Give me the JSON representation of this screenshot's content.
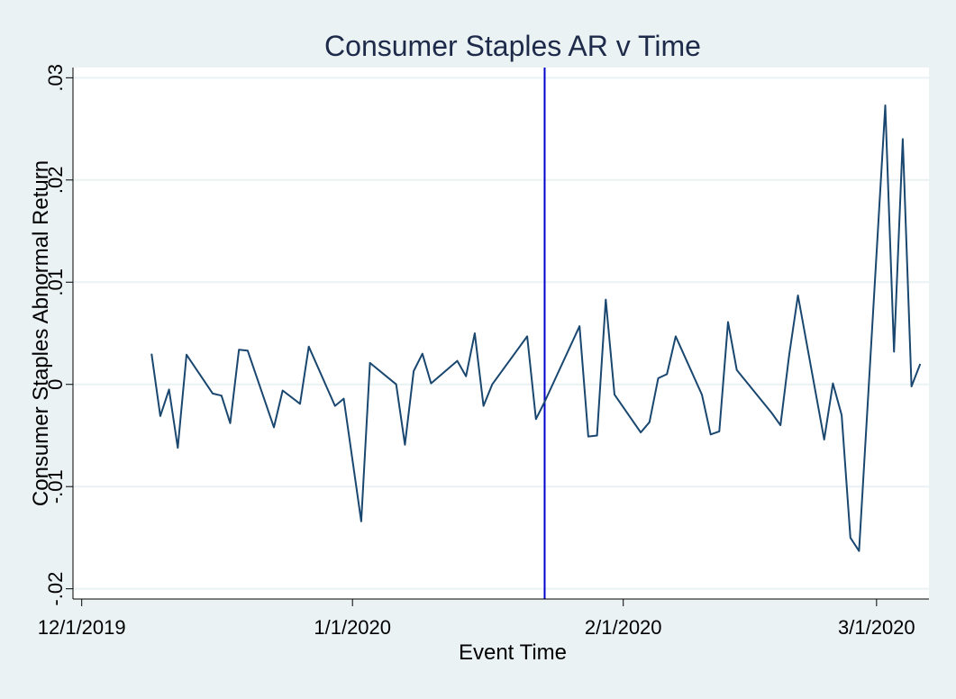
{
  "chart_data": {
    "type": "line",
    "title": "Consumer Staples AR v Time",
    "xlabel": "Event Time",
    "ylabel": "Consumer Staples Abnormal Return",
    "x_ticks": [
      "12/1/2019",
      "1/1/2020",
      "2/1/2020",
      "3/1/2020"
    ],
    "y_ticks": [
      {
        "value": -0.02,
        "label": "-.02"
      },
      {
        "value": -0.01,
        "label": "-.01"
      },
      {
        "value": 0,
        "label": "0"
      },
      {
        "value": 0.01,
        "label": ".01"
      },
      {
        "value": 0.02,
        "label": ".02"
      },
      {
        "value": 0.03,
        "label": ".03"
      }
    ],
    "xlim": [
      "2019-11-30",
      "2020-03-07"
    ],
    "ylim": [
      -0.021,
      0.031
    ],
    "grid": true,
    "reference_line": {
      "x": "2020-01-23",
      "color": "#0000cd"
    },
    "colors": {
      "background": "#eaf2f3",
      "plot_background": "#ffffff",
      "line": "#1a476f",
      "grid": "#eaf2f3",
      "reference_line": "#0000cd"
    },
    "series": [
      {
        "x": [
          "2019-12-09",
          "2019-12-10",
          "2019-12-11",
          "2019-12-12",
          "2019-12-13",
          "2019-12-16",
          "2019-12-17",
          "2019-12-18",
          "2019-12-19",
          "2019-12-20",
          "2019-12-23",
          "2019-12-24",
          "2019-12-26",
          "2019-12-27",
          "2019-12-30",
          "2019-12-31",
          "2020-01-02",
          "2020-01-03",
          "2020-01-06",
          "2020-01-07",
          "2020-01-08",
          "2020-01-09",
          "2020-01-10",
          "2020-01-13",
          "2020-01-14",
          "2020-01-15",
          "2020-01-16",
          "2020-01-17",
          "2020-01-21",
          "2020-01-22",
          "2020-01-23",
          "2020-01-27",
          "2020-01-28",
          "2020-01-29",
          "2020-01-30",
          "2020-01-31",
          "2020-02-03",
          "2020-02-04",
          "2020-02-05",
          "2020-02-06",
          "2020-02-07",
          "2020-02-10",
          "2020-02-11",
          "2020-02-12",
          "2020-02-13",
          "2020-02-14",
          "2020-02-18",
          "2020-02-19",
          "2020-02-20",
          "2020-02-21",
          "2020-02-24",
          "2020-02-25",
          "2020-02-26",
          "2020-02-27",
          "2020-02-28",
          "2020-03-02",
          "2020-03-03",
          "2020-03-04",
          "2020-03-05",
          "2020-03-06"
        ],
        "values": [
          0.003,
          -0.0031,
          -0.0005,
          -0.0062,
          0.0029,
          -0.0009,
          -0.0011,
          -0.0038,
          0.0034,
          0.0033,
          -0.0042,
          -0.0006,
          -0.0019,
          0.0037,
          -0.0021,
          -0.0014,
          -0.0134,
          0.0021,
          0.0,
          -0.0059,
          0.0013,
          0.003,
          0.0001,
          0.0023,
          0.0008,
          0.005,
          -0.0021,
          0.0,
          0.0047,
          -0.0034,
          -0.0017,
          0.0057,
          -0.0051,
          -0.005,
          0.0083,
          -0.001,
          -0.0047,
          -0.0037,
          0.0006,
          0.001,
          0.0047,
          -0.001,
          -0.0049,
          -0.0046,
          0.0061,
          0.0014,
          -0.0028,
          -0.004,
          0.0029,
          0.0087,
          -0.0054,
          0.0001,
          -0.003,
          -0.015,
          -0.0163,
          0.0273,
          0.0032,
          0.024,
          -0.0002,
          0.002
        ]
      }
    ]
  }
}
